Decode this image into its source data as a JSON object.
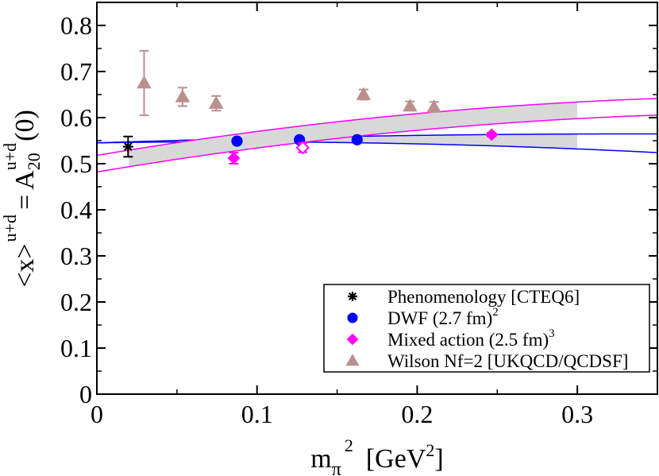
{
  "chart_data": {
    "type": "scatter",
    "title": "",
    "xlabel_parts": {
      "base": "m",
      "sub": "π",
      "sup": "2",
      "unit_open": "[GeV",
      "unit_sup": "2",
      "unit_close": "]"
    },
    "ylabel_parts": {
      "lhs": "<x>",
      "lhs_sup": "u+d",
      "eq": "=",
      "rhs": "A",
      "rhs_sub": "20",
      "rhs_sup": "u+d",
      "rhs_arg": "(0)"
    },
    "xlim": [
      0,
      0.35
    ],
    "ylim": [
      0,
      0.85
    ],
    "x_ticks": [
      {
        "value": 0,
        "label": "0"
      },
      {
        "value": 0.1,
        "label": "0.1"
      },
      {
        "value": 0.2,
        "label": "0.2"
      },
      {
        "value": 0.3,
        "label": "0.3"
      }
    ],
    "y_ticks": [
      {
        "value": 0,
        "label": "0"
      },
      {
        "value": 0.1,
        "label": "0.1"
      },
      {
        "value": 0.2,
        "label": "0.2"
      },
      {
        "value": 0.3,
        "label": "0.3"
      },
      {
        "value": 0.4,
        "label": "0.4"
      },
      {
        "value": 0.5,
        "label": "0.5"
      },
      {
        "value": 0.6,
        "label": "0.6"
      },
      {
        "value": 0.7,
        "label": "0.7"
      },
      {
        "value": 0.8,
        "label": "0.8"
      }
    ],
    "legend_position": "bottom-right",
    "series": [
      {
        "name": "Phenomenology",
        "legend_label": "Phenomenology  [CTEQ6]",
        "legend_sup": "",
        "marker": "star",
        "color": "#000000",
        "points": [
          {
            "x": 0.0195,
            "y": 0.537,
            "err": 0.022
          }
        ]
      },
      {
        "name": "DWF",
        "legend_label": "DWF   (2.7 fm)",
        "legend_sup": "2",
        "marker": "circle",
        "color": "#0000ff",
        "points": [
          {
            "x": 0.0875,
            "y": 0.549,
            "err": 0.005
          },
          {
            "x": 0.1265,
            "y": 0.552,
            "err": 0.005
          },
          {
            "x": 0.1625,
            "y": 0.552,
            "err": 0.005
          }
        ]
      },
      {
        "name": "Mixed action",
        "legend_label": "Mixed action  (2.5 fm)",
        "legend_sup": "3",
        "marker": "diamond",
        "color": "#ff00ff",
        "points": [
          {
            "x": 0.0855,
            "y": 0.512,
            "err": 0.012,
            "open": false
          },
          {
            "x": 0.1285,
            "y": 0.535,
            "err": 0.01,
            "open": true
          },
          {
            "x": 0.2465,
            "y": 0.563,
            "err": 0.004,
            "open": false
          }
        ]
      },
      {
        "name": "Wilson Nf=2",
        "legend_label": "Wilson Nf=2 [UKQCD/QCDSF]",
        "legend_sup": "",
        "marker": "triangle",
        "color": "#bc8f8f",
        "points": [
          {
            "x": 0.0295,
            "y": 0.675,
            "err": 0.07
          },
          {
            "x": 0.0535,
            "y": 0.645,
            "err": 0.02
          },
          {
            "x": 0.0745,
            "y": 0.631,
            "err": 0.016
          },
          {
            "x": 0.1665,
            "y": 0.65,
            "err": 0.011
          },
          {
            "x": 0.1955,
            "y": 0.625,
            "err": 0.01
          },
          {
            "x": 0.2105,
            "y": 0.623,
            "err": 0.011
          }
        ]
      }
    ],
    "fit_bands": [
      {
        "name": "DWF fit",
        "color": "#0000ff",
        "center": [
          0.5452,
          0.0852,
          -0.25
        ],
        "upper": [
          0.5452,
          0.115,
          -0.17
        ],
        "lower": [
          0.5452,
          0.0552,
          -0.33
        ],
        "shade_from": 0.02,
        "shade_to": 0.3
      },
      {
        "name": "Mixed action fit",
        "color": "#ff00ff",
        "center": [
          0.5,
          0.586,
          -0.6667
        ],
        "upper": [
          0.518,
          0.586,
          -0.6667
        ],
        "lower": [
          0.482,
          0.586,
          -0.6667
        ],
        "shade_from": 0.02,
        "shade_to": 0.3
      }
    ]
  }
}
